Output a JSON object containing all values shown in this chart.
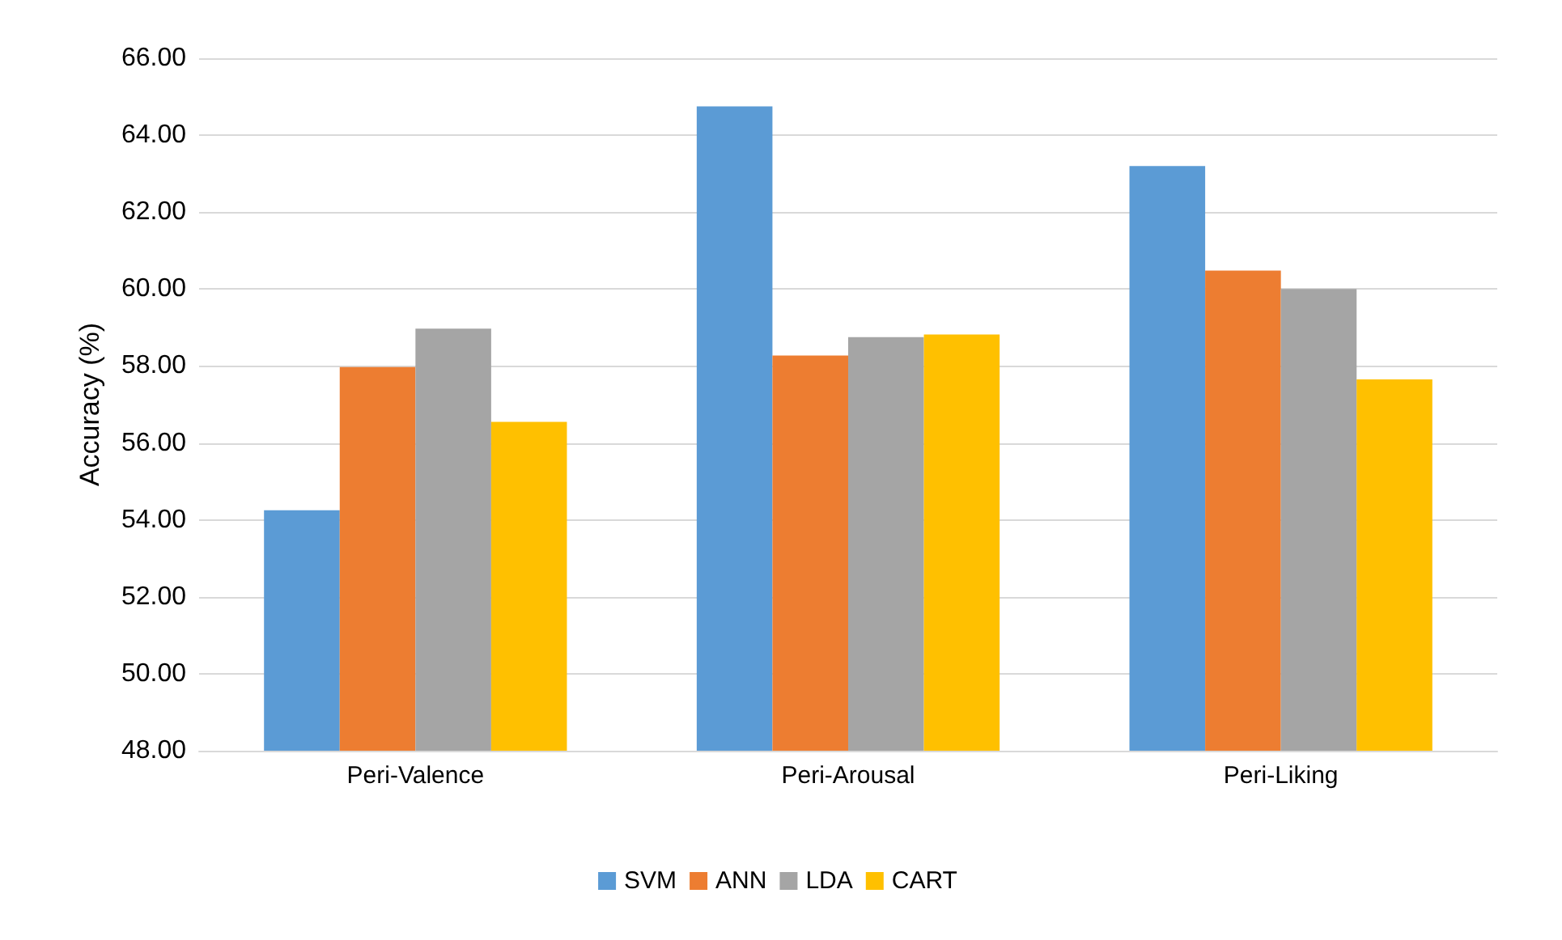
{
  "chart_data": {
    "type": "bar",
    "ylabel": "Accuracy (%)",
    "categories": [
      "Peri-Valence",
      "Peri-Arousal",
      "Peri-Liking"
    ],
    "series": [
      {
        "name": "SVM",
        "color": "#5b9bd5",
        "values": [
          54.25,
          64.75,
          63.2
        ]
      },
      {
        "name": "ANN",
        "color": "#ed7d31",
        "values": [
          57.97,
          58.27,
          60.48
        ]
      },
      {
        "name": "LDA",
        "color": "#a5a5a5",
        "values": [
          58.97,
          58.75,
          60.0
        ]
      },
      {
        "name": "CART",
        "color": "#ffc000",
        "values": [
          56.55,
          58.82,
          57.65
        ]
      }
    ],
    "ylim": [
      48,
      66
    ],
    "yticks": [
      {
        "value": 48,
        "label": "48.00"
      },
      {
        "value": 50,
        "label": "50.00"
      },
      {
        "value": 52,
        "label": "52.00"
      },
      {
        "value": 54,
        "label": "54.00"
      },
      {
        "value": 56,
        "label": "56.00"
      },
      {
        "value": 58,
        "label": "58.00"
      },
      {
        "value": 60,
        "label": "60.00"
      },
      {
        "value": 62,
        "label": "62.00"
      },
      {
        "value": 64,
        "label": "64.00"
      },
      {
        "value": 66,
        "label": "66.00"
      }
    ],
    "grid": true,
    "legend": "bottom"
  }
}
